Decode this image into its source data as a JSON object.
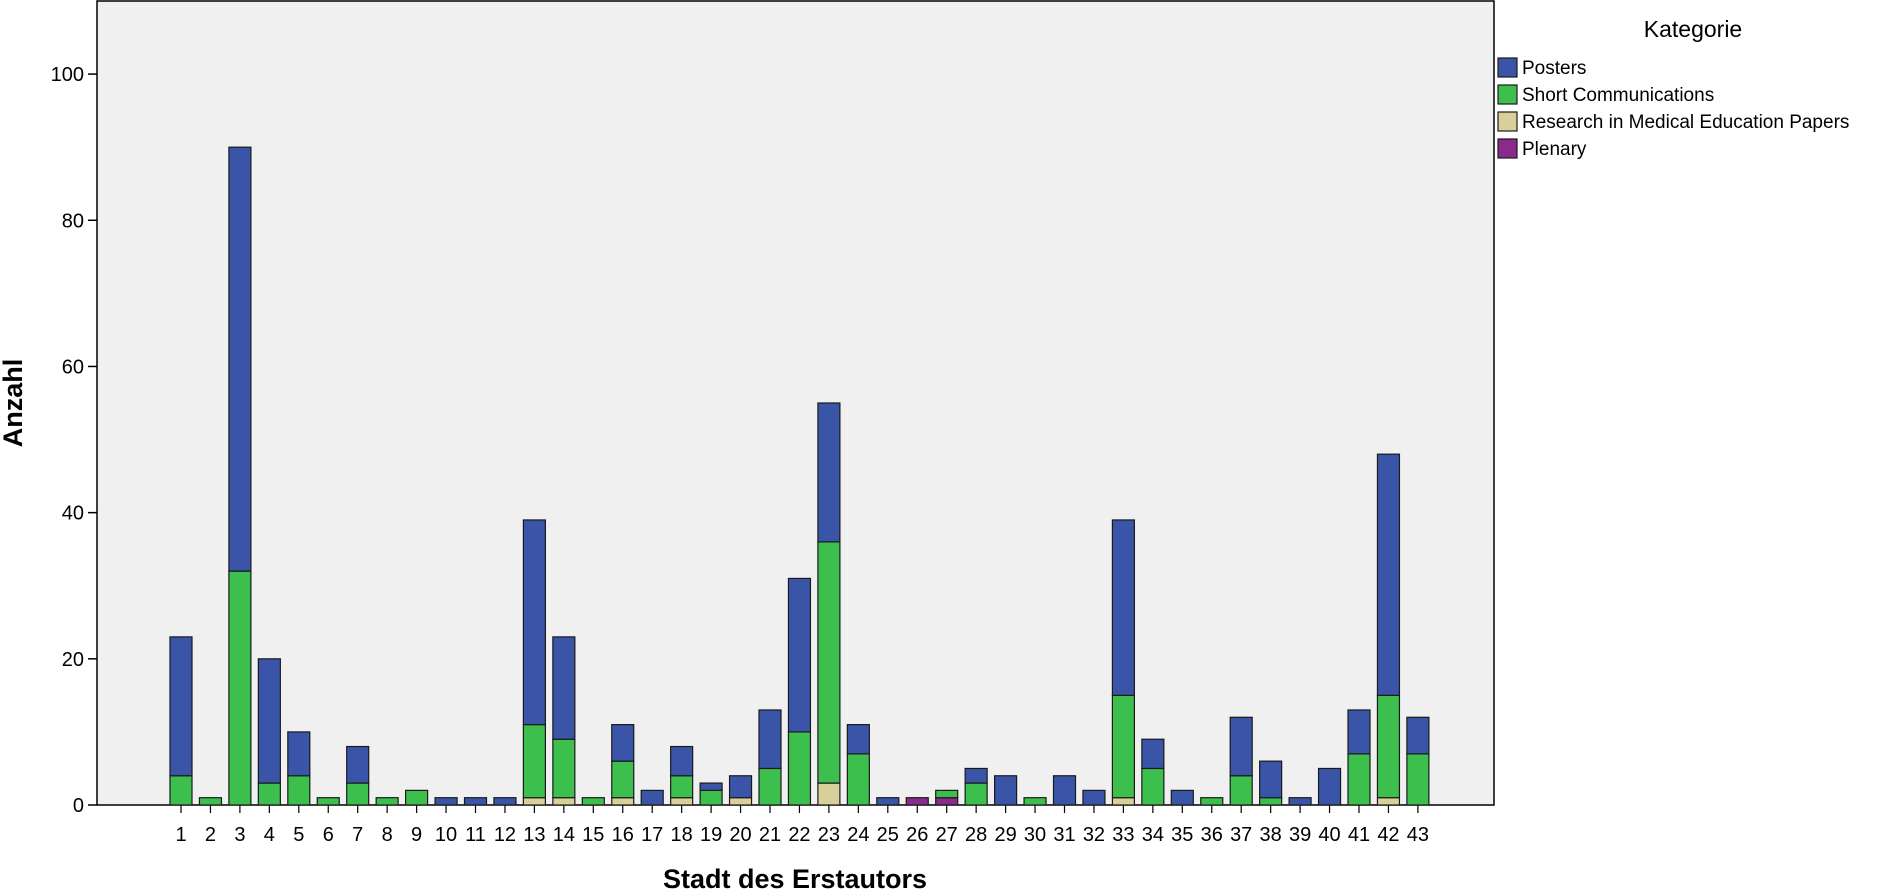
{
  "chart_data": {
    "type": "bar",
    "stacked": true,
    "xlabel": "Stadt des Erstautors",
    "ylabel": "Anzahl",
    "ylim": [
      0,
      110
    ],
    "yticks": [
      0,
      20,
      40,
      60,
      80,
      100
    ],
    "grid": false,
    "legend": {
      "title": "Kategorie",
      "placement": "top-right, outside plot"
    },
    "categories": [
      "1",
      "2",
      "3",
      "4",
      "5",
      "6",
      "7",
      "8",
      "9",
      "10",
      "11",
      "12",
      "13",
      "14",
      "15",
      "16",
      "17",
      "18",
      "19",
      "20",
      "21",
      "22",
      "23",
      "24",
      "25",
      "26",
      "27",
      "28",
      "29",
      "30",
      "31",
      "32",
      "33",
      "34",
      "35",
      "36",
      "37",
      "38",
      "39",
      "40",
      "41",
      "42",
      "43"
    ],
    "series": [
      {
        "name": "Plenary",
        "color": "#8a2a8a",
        "values": [
          0,
          0,
          0,
          0,
          0,
          0,
          0,
          0,
          0,
          0,
          0,
          0,
          0,
          0,
          0,
          0,
          0,
          0,
          0,
          0,
          0,
          0,
          0,
          0,
          0,
          1,
          1,
          0,
          0,
          0,
          0,
          0,
          0,
          0,
          0,
          0,
          0,
          0,
          0,
          0,
          0,
          0,
          0
        ]
      },
      {
        "name": "Research in Medical Education Papers",
        "color": "#d9cf9a",
        "values": [
          0,
          0,
          0,
          0,
          0,
          0,
          0,
          0,
          0,
          0,
          0,
          0,
          1,
          1,
          0,
          1,
          0,
          1,
          0,
          1,
          0,
          0,
          3,
          0,
          0,
          0,
          0,
          0,
          0,
          0,
          0,
          0,
          1,
          0,
          0,
          0,
          0,
          0,
          0,
          0,
          0,
          1,
          0
        ]
      },
      {
        "name": "Short Communications",
        "color": "#3dbf4e",
        "values": [
          4,
          1,
          32,
          3,
          4,
          1,
          3,
          1,
          2,
          0,
          0,
          0,
          10,
          8,
          1,
          5,
          0,
          3,
          2,
          0,
          5,
          10,
          33,
          7,
          0,
          0,
          1,
          3,
          0,
          1,
          0,
          0,
          14,
          5,
          0,
          1,
          4,
          1,
          0,
          0,
          7,
          14,
          7
        ]
      },
      {
        "name": "Posters",
        "color": "#3a55a8",
        "values": [
          19,
          0,
          58,
          17,
          6,
          0,
          5,
          0,
          0,
          1,
          1,
          1,
          28,
          14,
          0,
          5,
          2,
          4,
          1,
          3,
          8,
          21,
          19,
          4,
          1,
          0,
          0,
          2,
          4,
          0,
          4,
          2,
          24,
          4,
          2,
          0,
          8,
          5,
          1,
          5,
          6,
          33,
          5
        ]
      }
    ]
  }
}
